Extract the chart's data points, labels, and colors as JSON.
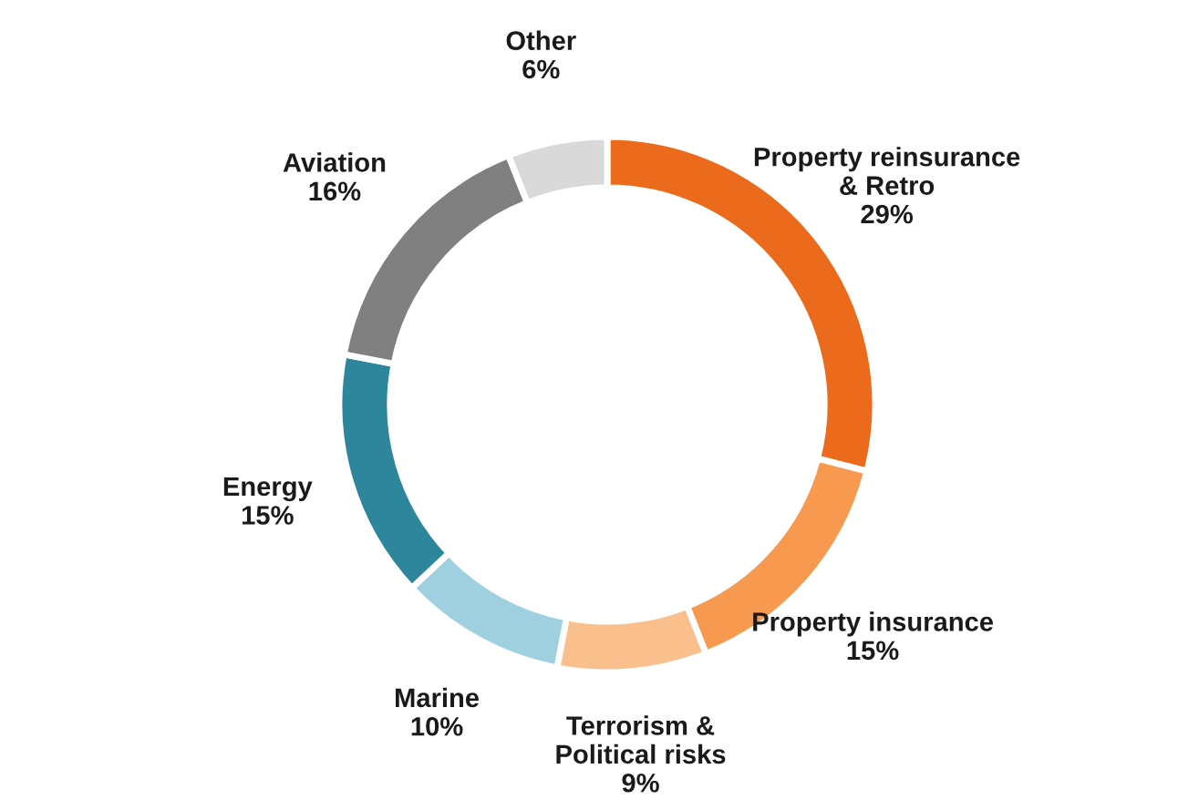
{
  "chart_data": {
    "type": "donut",
    "categories": [
      "Property reinsurance\n& Retro",
      "Property insurance",
      "Terrorism &\nPolitical risks",
      "Marine",
      "Energy",
      "Aviation",
      "Other"
    ],
    "values": [
      29,
      15,
      9,
      10,
      15,
      16,
      6
    ],
    "value_labels": [
      "29%",
      "15%",
      "9%",
      "10%",
      "15%",
      "16%",
      "6%"
    ],
    "colors": [
      "#ec6a1c",
      "#f79a4f",
      "#f9c08e",
      "#9fd0e0",
      "#2e869c",
      "#808080",
      "#d9d9d9"
    ],
    "legend": false
  }
}
